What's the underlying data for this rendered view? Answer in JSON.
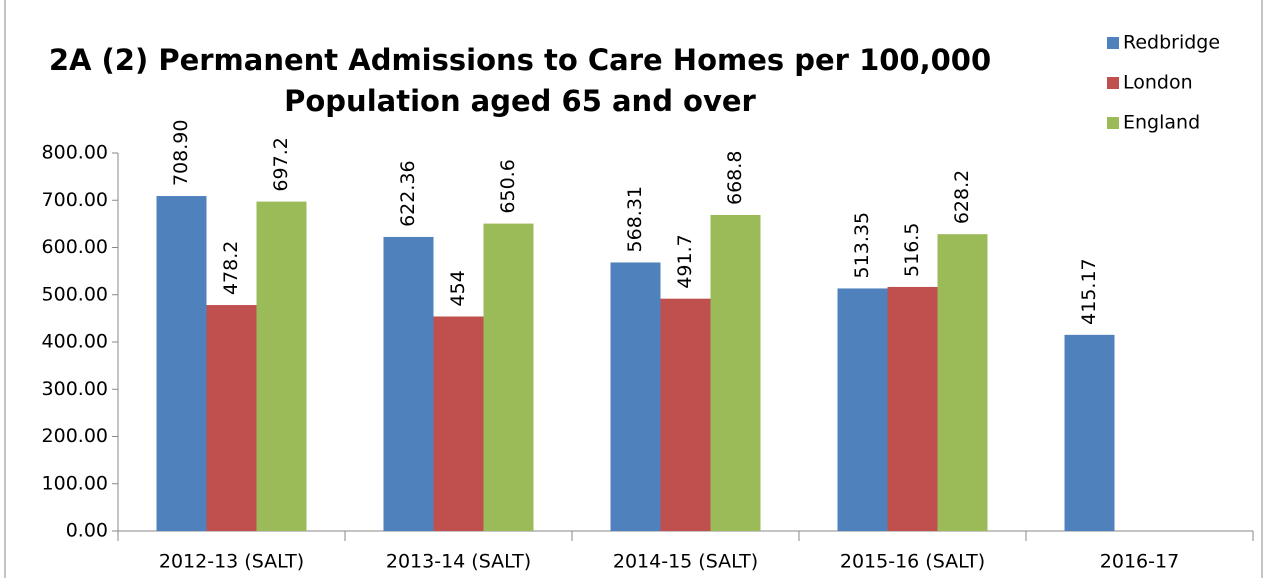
{
  "chart_data": {
    "type": "bar",
    "title": [
      "2A (2) Permanent Admissions to Care Homes per 100,000",
      "Population aged 65 and over"
    ],
    "categories": [
      "2012-13 (SALT)",
      "2013-14 (SALT)",
      "2014-15 (SALT)",
      "2015-16 (SALT)",
      "2016-17"
    ],
    "series": [
      {
        "name": "Redbridge",
        "color": "#4f81bd",
        "values": [
          708.9,
          622.36,
          568.31,
          513.35,
          415.17
        ],
        "value_labels": [
          "708.90",
          "622.36",
          "568.31",
          "513.35",
          "415.17"
        ]
      },
      {
        "name": "London",
        "color": "#c0504d",
        "values": [
          478.2,
          454,
          491.7,
          516.5,
          null
        ],
        "value_labels": [
          "478.2",
          "454",
          "491.7",
          "516.5",
          null
        ]
      },
      {
        "name": "England",
        "color": "#9bbb59",
        "values": [
          697.2,
          650.6,
          668.8,
          628.2,
          null
        ],
        "value_labels": [
          "697.2",
          "650.6",
          "668.8",
          "628.2",
          null
        ]
      }
    ],
    "ylim": [
      0,
      800
    ],
    "yticks": [
      {
        "value": 0,
        "label": "0.00"
      },
      {
        "value": 100,
        "label": "100.00"
      },
      {
        "value": 200,
        "label": "200.00"
      },
      {
        "value": 300,
        "label": "300.00"
      },
      {
        "value": 400,
        "label": "400.00"
      },
      {
        "value": 500,
        "label": "500.00"
      },
      {
        "value": 600,
        "label": "600.00"
      },
      {
        "value": 700,
        "label": "700.00"
      },
      {
        "value": 800,
        "label": "800.00"
      }
    ],
    "legend": "top-right"
  }
}
